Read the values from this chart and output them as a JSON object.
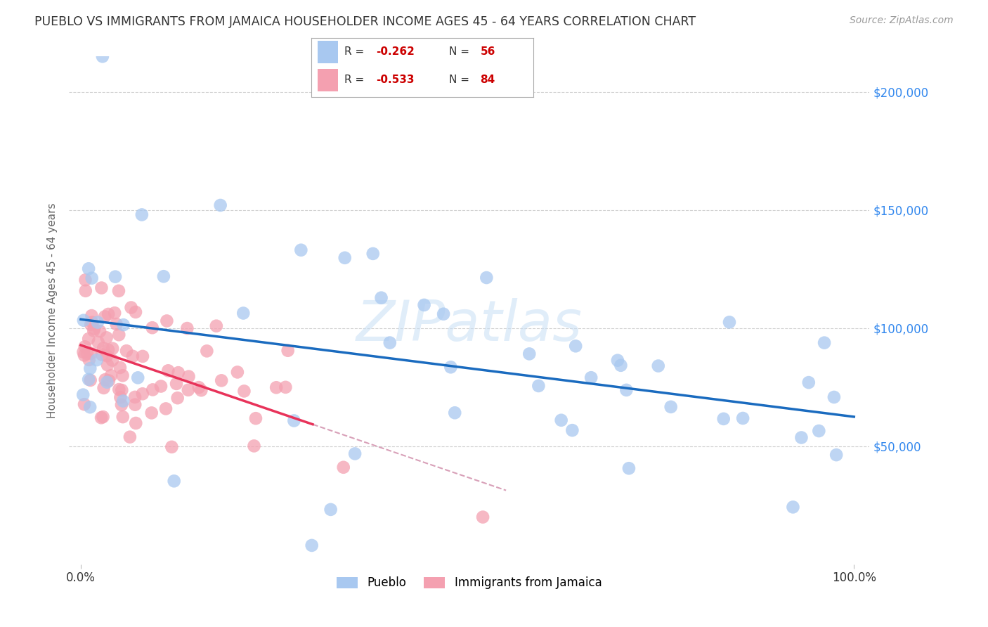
{
  "title": "PUEBLO VS IMMIGRANTS FROM JAMAICA HOUSEHOLDER INCOME AGES 45 - 64 YEARS CORRELATION CHART",
  "source": "Source: ZipAtlas.com",
  "ylabel": "Householder Income Ages 45 - 64 years",
  "ytick_labels": [
    "$50,000",
    "$100,000",
    "$150,000",
    "$200,000"
  ],
  "ytick_values": [
    50000,
    100000,
    150000,
    200000
  ],
  "ymin": 0,
  "ymax": 215000,
  "xmin": 0.0,
  "xmax": 1.0,
  "pueblo_color": "#a8c8f0",
  "jamaica_color": "#f4a0b0",
  "pueblo_line_color": "#1a6bbf",
  "jamaica_line_color": "#e8335a",
  "jamaica_dashed_color": "#d8a0b8",
  "legend_box_color": "#dddddd",
  "pueblo_R": "-0.262",
  "pueblo_N": "56",
  "jamaica_R": "-0.533",
  "jamaica_N": "84",
  "watermark_color": "#c8dff5",
  "grid_color": "#cccccc",
  "right_axis_color": "#3388ee",
  "title_color": "#333333",
  "source_color": "#999999",
  "ylabel_color": "#666666"
}
